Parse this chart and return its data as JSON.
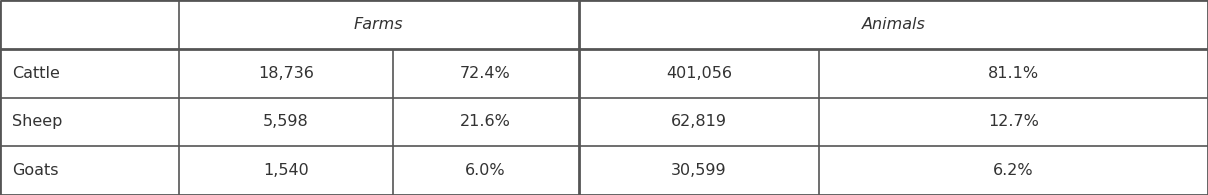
{
  "rows": [
    [
      "Cattle",
      "18,736",
      "72.4%",
      "401,056",
      "81.1%"
    ],
    [
      "Sheep",
      "5,598",
      "21.6%",
      "62,819",
      "12.7%"
    ],
    [
      "Goats",
      "1,540",
      "6.0%",
      "30,599",
      "6.2%"
    ]
  ],
  "farms_header": "Farms",
  "animals_header": "Animals",
  "bg_color": "#ffffff",
  "line_color": "#555555",
  "text_color": "#333333",
  "font_size": 11.5,
  "header_font_size": 11.5,
  "col_bounds": [
    0.0,
    0.148,
    0.325,
    0.479,
    0.678,
    1.0
  ],
  "row_bounds": [
    1.0,
    0.748,
    0.5,
    0.25,
    0.0
  ]
}
